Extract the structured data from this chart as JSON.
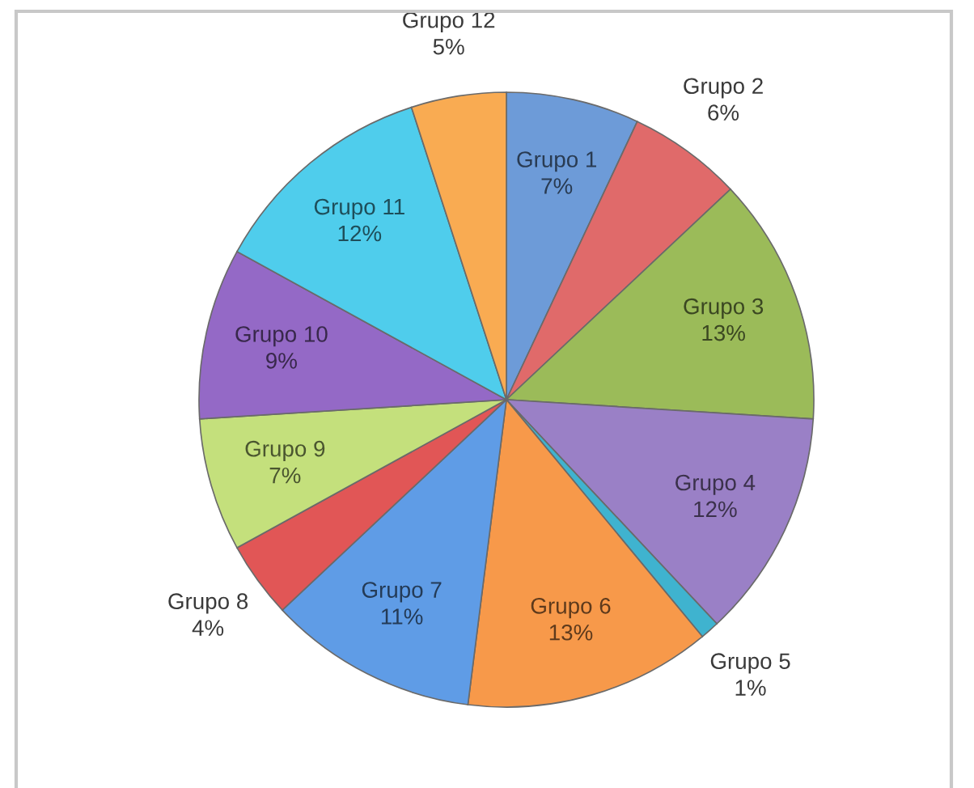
{
  "chart_data": {
    "type": "pie",
    "categories": [
      "Grupo 1",
      "Grupo 2",
      "Grupo 3",
      "Grupo 4",
      "Grupo 5",
      "Grupo 6",
      "Grupo 7",
      "Grupo 8",
      "Grupo 9",
      "Grupo 10",
      "Grupo 11",
      "Grupo 12"
    ],
    "values": [
      7,
      6,
      13,
      12,
      1,
      13,
      11,
      4,
      7,
      9,
      12,
      5
    ],
    "value_labels": [
      "7%",
      "6%",
      "13%",
      "12%",
      "1%",
      "13%",
      "11%",
      "4%",
      "7%",
      "9%",
      "12%",
      "5%"
    ],
    "colors": [
      "#6d9bd8",
      "#e06a6a",
      "#9bbb59",
      "#9a80c6",
      "#3fb3cf",
      "#f7994a",
      "#5f9ce6",
      "#e15656",
      "#c4e07c",
      "#9469c6",
      "#4fcdec",
      "#f9ab52"
    ]
  }
}
